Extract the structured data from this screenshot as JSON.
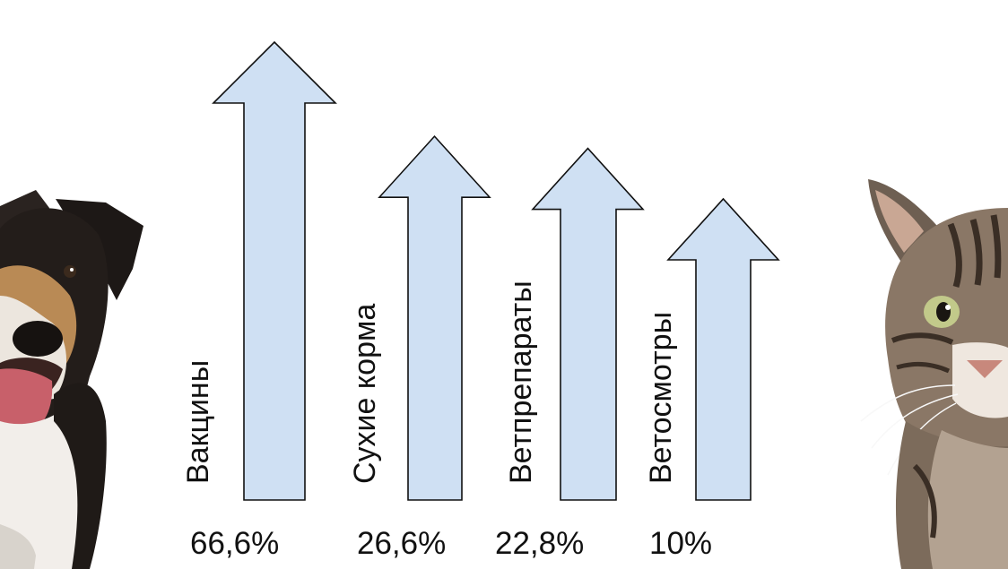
{
  "chart_data": {
    "type": "bar",
    "categories": [
      "Вакцины",
      "Сухие корма",
      "Ветпрепараты",
      "Ветосмотры"
    ],
    "values": [
      66.6,
      26.6,
      22.8,
      10
    ],
    "value_labels": [
      "66,6%",
      "26,6%",
      "22,8%",
      "10%"
    ],
    "title": "",
    "xlabel": "",
    "ylabel": "",
    "bar_style": "upward-arrow",
    "grid": false,
    "legend": "none"
  },
  "colors": {
    "arrow_fill": "#cfe0f3",
    "arrow_stroke": "#111111",
    "text": "#111111",
    "background": "#ffffff"
  },
  "images": {
    "left": "dog-photo",
    "right": "cat-photo"
  }
}
